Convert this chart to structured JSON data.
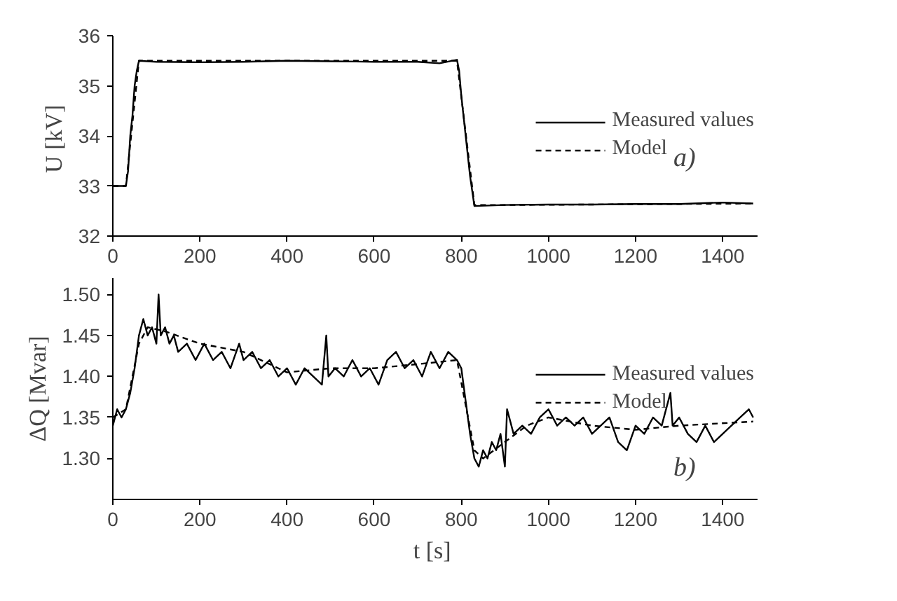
{
  "chart_data": [
    {
      "type": "line",
      "ylabel": "U  [kV]",
      "annotations": [
        "a)"
      ],
      "legend": "right",
      "grid": false,
      "xlim": [
        0,
        1480
      ],
      "xticks": [
        0,
        200,
        400,
        600,
        800,
        1000,
        1200,
        1400
      ],
      "ylim": [
        32,
        36
      ],
      "yticks": [
        32,
        33,
        34,
        35,
        36
      ],
      "series": [
        {
          "name": "Measured values",
          "color": "#000000",
          "line_style": "solid",
          "x": [
            0,
            30,
            35,
            40,
            45,
            50,
            55,
            60,
            100,
            200,
            300,
            400,
            500,
            600,
            700,
            750,
            790,
            795,
            800,
            810,
            820,
            830,
            900,
            1000,
            1100,
            1200,
            1300,
            1400,
            1470
          ],
          "values": [
            33.0,
            33.0,
            33.3,
            34.0,
            34.4,
            35.0,
            35.3,
            35.5,
            35.48,
            35.47,
            35.48,
            35.5,
            35.49,
            35.48,
            35.48,
            35.45,
            35.52,
            35.3,
            34.8,
            34.0,
            33.2,
            32.6,
            32.62,
            32.63,
            32.63,
            32.64,
            32.64,
            32.67,
            32.65
          ]
        },
        {
          "name": "Model",
          "color": "#000000",
          "line_style": "dashed",
          "x": [
            0,
            30,
            60,
            100,
            300,
            500,
            700,
            790,
            830,
            900,
            1100,
            1300,
            1470
          ],
          "values": [
            33.0,
            33.0,
            35.5,
            35.5,
            35.5,
            35.5,
            35.5,
            35.5,
            32.62,
            32.62,
            32.63,
            32.64,
            32.65
          ]
        }
      ]
    },
    {
      "type": "line",
      "ylabel": "ΔQ [Mvar]",
      "xlabel": "t  [s]",
      "annotations": [
        "b)"
      ],
      "legend": "right",
      "grid": false,
      "xlim": [
        0,
        1480
      ],
      "xticks": [
        0,
        200,
        400,
        600,
        800,
        1000,
        1200,
        1400
      ],
      "ylim": [
        1.25,
        1.52
      ],
      "yticks": [
        {
          "value": 1.3,
          "label": "1.30"
        },
        {
          "value": 1.35,
          "label": "1.35"
        },
        {
          "value": 1.4,
          "label": "1.40"
        },
        {
          "value": 1.45,
          "label": "1.45"
        },
        {
          "value": 1.5,
          "label": "1.50"
        }
      ],
      "series": [
        {
          "name": "Measured values",
          "color": "#000000",
          "line_style": "solid",
          "x": [
            0,
            10,
            20,
            30,
            40,
            50,
            60,
            70,
            80,
            90,
            100,
            105,
            110,
            120,
            130,
            140,
            150,
            170,
            190,
            210,
            230,
            250,
            270,
            290,
            300,
            320,
            340,
            360,
            380,
            400,
            420,
            440,
            460,
            480,
            490,
            495,
            510,
            530,
            550,
            570,
            590,
            610,
            630,
            650,
            670,
            690,
            710,
            730,
            750,
            770,
            790,
            800,
            810,
            820,
            830,
            840,
            850,
            860,
            870,
            880,
            890,
            900,
            905,
            920,
            940,
            960,
            980,
            1000,
            1020,
            1040,
            1060,
            1080,
            1100,
            1120,
            1140,
            1160,
            1180,
            1200,
            1220,
            1240,
            1260,
            1280,
            1285,
            1300,
            1320,
            1340,
            1360,
            1380,
            1400,
            1420,
            1440,
            1460,
            1470
          ],
          "values": [
            1.34,
            1.36,
            1.35,
            1.36,
            1.38,
            1.41,
            1.45,
            1.47,
            1.45,
            1.46,
            1.44,
            1.5,
            1.45,
            1.46,
            1.44,
            1.45,
            1.43,
            1.44,
            1.42,
            1.44,
            1.42,
            1.43,
            1.41,
            1.44,
            1.42,
            1.43,
            1.41,
            1.42,
            1.4,
            1.41,
            1.39,
            1.41,
            1.4,
            1.39,
            1.45,
            1.4,
            1.41,
            1.4,
            1.42,
            1.4,
            1.41,
            1.39,
            1.42,
            1.43,
            1.41,
            1.42,
            1.4,
            1.43,
            1.41,
            1.43,
            1.42,
            1.41,
            1.37,
            1.33,
            1.3,
            1.29,
            1.31,
            1.3,
            1.32,
            1.31,
            1.33,
            1.29,
            1.36,
            1.33,
            1.34,
            1.33,
            1.35,
            1.36,
            1.34,
            1.35,
            1.34,
            1.35,
            1.33,
            1.34,
            1.35,
            1.32,
            1.31,
            1.34,
            1.33,
            1.35,
            1.34,
            1.38,
            1.34,
            1.35,
            1.33,
            1.32,
            1.34,
            1.32,
            1.33,
            1.34,
            1.35,
            1.36,
            1.35
          ]
        },
        {
          "name": "Model",
          "color": "#000000",
          "line_style": "dashed",
          "x": [
            0,
            30,
            60,
            80,
            120,
            200,
            300,
            400,
            500,
            600,
            700,
            790,
            830,
            850,
            900,
            950,
            1000,
            1100,
            1200,
            1300,
            1470
          ],
          "values": [
            1.35,
            1.36,
            1.44,
            1.46,
            1.455,
            1.44,
            1.43,
            1.405,
            1.41,
            1.41,
            1.415,
            1.42,
            1.31,
            1.3,
            1.32,
            1.34,
            1.35,
            1.34,
            1.335,
            1.34,
            1.345
          ]
        }
      ]
    }
  ]
}
